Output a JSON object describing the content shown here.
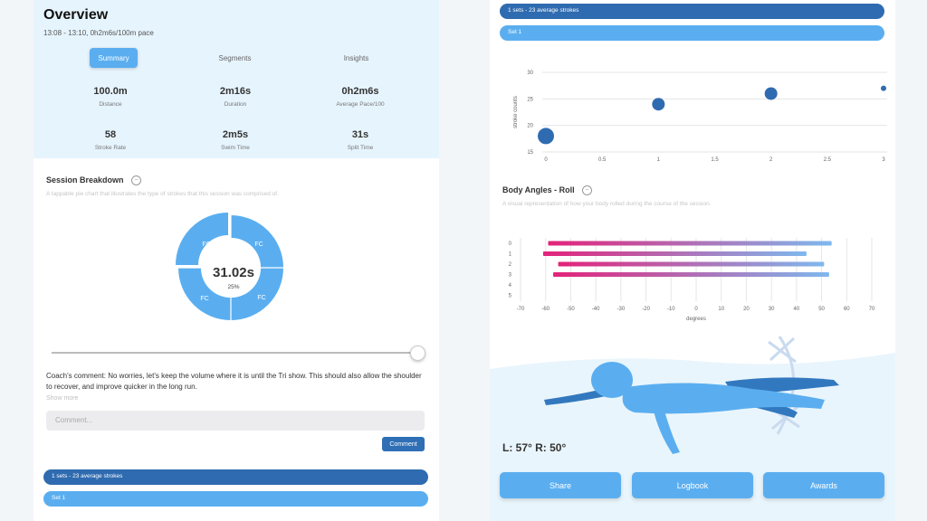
{
  "overview": {
    "title": "Overview",
    "subtitle": "13:08 - 13:10, 0h2m6s/100m pace",
    "tabs": [
      {
        "label": "Summary",
        "active": true
      },
      {
        "label": "Segments",
        "active": false
      },
      {
        "label": "Insights",
        "active": false
      }
    ],
    "stats": [
      {
        "value": "100.0m",
        "label": "Distance"
      },
      {
        "value": "2m16s",
        "label": "Duration"
      },
      {
        "value": "0h2m6s",
        "label": "Average Pace/100"
      },
      {
        "value": "58",
        "label": "Stroke Rate"
      },
      {
        "value": "2m5s",
        "label": "Swim Time"
      },
      {
        "value": "31s",
        "label": "Split Time"
      }
    ]
  },
  "session_breakdown": {
    "title": "Session Breakdown",
    "description": "A tappable pie chart that illustrates the type of strokes that this session was comprised of.",
    "center_value": "31.02s",
    "center_percent": "25%",
    "slice_labels": [
      "FC",
      "FC",
      "FC",
      "FC"
    ],
    "slider_value": 1.0
  },
  "coach": {
    "comment": "Coach's comment: No worries, let's keep the volume where it is until the Tri show. This should also allow the shoulder to recover, and improve quicker in the long run.",
    "show_more": "Show more",
    "input_placeholder": "Comment...",
    "button_label": "Comment"
  },
  "sets": {
    "summary": "1 sets - 23 average strokes",
    "set_label": "Set 1"
  },
  "stroke_chart": {
    "ylabel": "stroke counts",
    "x_ticks": [
      "0",
      "0.5",
      "1",
      "1.5",
      "2",
      "2.5",
      "3"
    ],
    "y_ticks": [
      "15",
      "20",
      "25",
      "30"
    ]
  },
  "body_angles": {
    "title": "Body Angles - Roll",
    "description": "A visual representation of how your body rolled during the course of the session.",
    "xlabel": "degrees",
    "x_ticks": [
      "-70",
      "-60",
      "-50",
      "-40",
      "-30",
      "-20",
      "-10",
      "0",
      "10",
      "20",
      "30",
      "40",
      "50",
      "60",
      "70"
    ],
    "y_ticks": [
      "0",
      "1",
      "2",
      "3",
      "4",
      "5"
    ],
    "readout": "L: 57° R: 50°"
  },
  "actions": {
    "share": "Share",
    "logbook": "Logbook",
    "awards": "Awards"
  },
  "colors": {
    "accent": "#5aaef0",
    "dark": "#2f6bb0",
    "roll_start": "#e3237a",
    "roll_end": "#7fb8ee"
  },
  "chart_data": [
    {
      "type": "scatter",
      "xlabel": "",
      "ylabel": "stroke counts",
      "xlim": [
        0,
        3
      ],
      "ylim": [
        15,
        30
      ],
      "points": [
        {
          "x": 0,
          "y": 18,
          "size": 3
        },
        {
          "x": 1,
          "y": 24,
          "size": 2
        },
        {
          "x": 2,
          "y": 26,
          "size": 2
        },
        {
          "x": 3,
          "y": 27,
          "size": 1
        }
      ]
    },
    {
      "type": "bar",
      "orientation": "horizontal",
      "xlabel": "degrees",
      "xlim": [
        -70,
        70
      ],
      "categories": [
        "0",
        "1",
        "2",
        "3",
        "4",
        "5"
      ],
      "ranges": [
        [
          -59,
          54
        ],
        [
          -61,
          44
        ],
        [
          -55,
          51
        ],
        [
          -57,
          53
        ]
      ]
    }
  ]
}
